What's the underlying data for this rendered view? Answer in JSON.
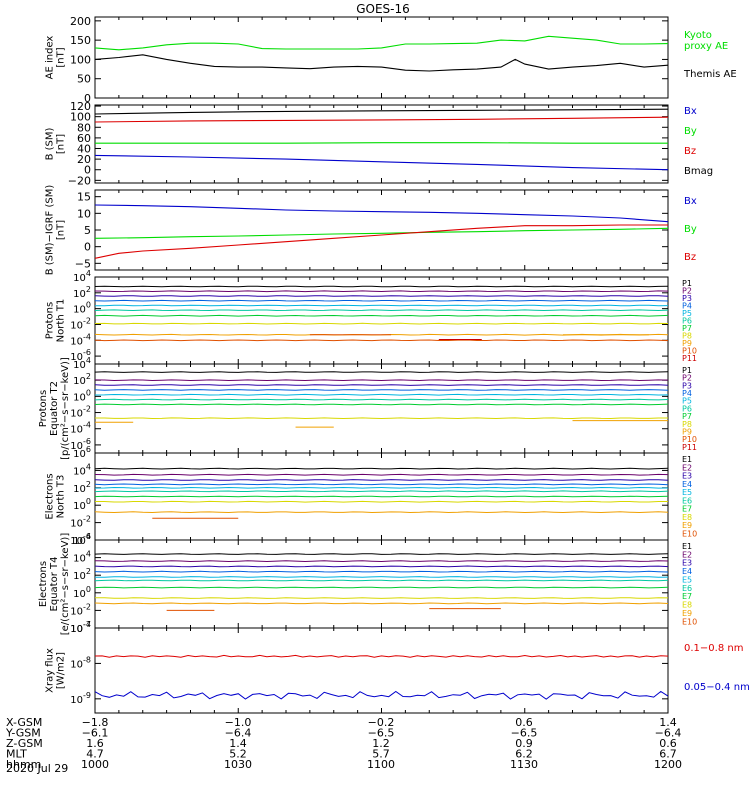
{
  "title": "GOES-16",
  "colors": {
    "black": "#000000",
    "green": "#00dd00",
    "red": "#dd0000",
    "blue": "#0000cc",
    "P": [
      "#000000",
      "#6a006a",
      "#2a00a8",
      "#0060e0",
      "#00b4e0",
      "#00c8a0",
      "#00cc30",
      "#d8d800",
      "#f0a000",
      "#e05000",
      "#cc0000"
    ],
    "E": [
      "#000000",
      "#6a006a",
      "#2a00a8",
      "#0060e0",
      "#00b4e0",
      "#00c8a0",
      "#00cc30",
      "#d8d800",
      "#f0a000",
      "#e05000",
      "#cc0000"
    ]
  },
  "chart_data": [
    {
      "type": "line",
      "id": "ae",
      "ylabel": [
        "AE index",
        "[nT]"
      ],
      "ylim": [
        0,
        210
      ],
      "yticks": [
        "0",
        "50",
        "100",
        "150",
        "200"
      ],
      "ytick_values": [
        0,
        50,
        100,
        150,
        200
      ],
      "xlim": [
        0,
        120
      ],
      "series": [
        {
          "name": "Kyoto\nproxy AE",
          "color": "green",
          "x": [
            0,
            5,
            10,
            15,
            20,
            25,
            30,
            35,
            40,
            45,
            50,
            55,
            60,
            65,
            70,
            75,
            80,
            85,
            90,
            95,
            100,
            105,
            110,
            115,
            120
          ],
          "y": [
            130,
            125,
            130,
            138,
            142,
            142,
            140,
            128,
            127,
            127,
            127,
            127,
            130,
            140,
            140,
            141,
            142,
            150,
            148,
            160,
            155,
            150,
            140,
            140,
            141
          ]
        },
        {
          "name": "Themis AE",
          "color": "black",
          "x": [
            0,
            5,
            10,
            15,
            20,
            25,
            30,
            35,
            40,
            45,
            50,
            55,
            60,
            65,
            70,
            75,
            80,
            85,
            88,
            90,
            95,
            100,
            105,
            110,
            115,
            120
          ],
          "y": [
            100,
            105,
            112,
            100,
            90,
            82,
            80,
            80,
            78,
            76,
            80,
            82,
            80,
            72,
            70,
            73,
            75,
            80,
            100,
            88,
            75,
            80,
            84,
            90,
            80,
            85
          ]
        }
      ]
    },
    {
      "type": "line",
      "id": "b",
      "ylabel": [
        "B (SM)",
        "[nT]"
      ],
      "ylim": [
        -25,
        122
      ],
      "yticks": [
        "−20",
        "0",
        "20",
        "40",
        "60",
        "80",
        "100",
        "120"
      ],
      "ytick_values": [
        -20,
        0,
        20,
        40,
        60,
        80,
        100,
        120
      ],
      "xlim": [
        0,
        120
      ],
      "series": [
        {
          "name": "Bx",
          "color": "blue",
          "x": [
            0,
            20,
            40,
            60,
            80,
            100,
            120
          ],
          "y": [
            27,
            24,
            20,
            15,
            10,
            4,
            0
          ]
        },
        {
          "name": "By",
          "color": "green",
          "x": [
            0,
            20,
            40,
            60,
            80,
            100,
            120
          ],
          "y": [
            50,
            50,
            50,
            51,
            51,
            50,
            50
          ]
        },
        {
          "name": "Bz",
          "color": "red",
          "x": [
            0,
            20,
            40,
            60,
            80,
            100,
            120
          ],
          "y": [
            90,
            92,
            93,
            94,
            95,
            97,
            99
          ]
        },
        {
          "name": "Bmag",
          "color": "black",
          "x": [
            0,
            20,
            40,
            60,
            80,
            100,
            120
          ],
          "y": [
            105,
            108,
            110,
            111,
            112,
            113,
            114
          ]
        }
      ]
    },
    {
      "type": "line",
      "id": "bdiff",
      "ylabel": [
        "B (SM)−IGRF (SM)",
        "[nT]"
      ],
      "ylim": [
        -7,
        17
      ],
      "yticks": [
        "−5",
        "0",
        "5",
        "10",
        "15"
      ],
      "ytick_values": [
        -5,
        0,
        5,
        10,
        15
      ],
      "xlim": [
        0,
        120
      ],
      "series": [
        {
          "name": "Bx",
          "color": "blue",
          "x": [
            0,
            10,
            20,
            30,
            40,
            50,
            60,
            70,
            80,
            90,
            100,
            110,
            120
          ],
          "y": [
            12.5,
            12.3,
            12,
            11.5,
            11,
            10.7,
            10.5,
            10.3,
            10,
            9.6,
            9.2,
            8.6,
            7.5
          ]
        },
        {
          "name": "By",
          "color": "green",
          "x": [
            0,
            10,
            20,
            30,
            40,
            50,
            60,
            70,
            80,
            90,
            100,
            110,
            120
          ],
          "y": [
            2.5,
            2.7,
            3,
            3.2,
            3.5,
            3.8,
            4,
            4.3,
            4.5,
            4.8,
            5,
            5.2,
            5.5
          ]
        },
        {
          "name": "Bz",
          "color": "red",
          "x": [
            0,
            5,
            10,
            20,
            30,
            40,
            50,
            60,
            70,
            80,
            90,
            100,
            110,
            120
          ],
          "y": [
            -3.5,
            -2,
            -1.3,
            -0.5,
            0.5,
            1.5,
            2.5,
            3.5,
            4.5,
            5.5,
            6.3,
            6.3,
            6.5,
            6.5
          ]
        }
      ]
    },
    {
      "type": "line",
      "id": "p1",
      "log": true,
      "ylabel": [
        "Protons",
        "North T1"
      ],
      "ylim_exp": [
        -7,
        4
      ],
      "ytick_exps": [
        4,
        2,
        0,
        -2,
        -4,
        -6
      ],
      "xlim": [
        0,
        120
      ],
      "channel_labels": [
        "P1",
        "P2",
        "P3",
        "P4",
        "P5",
        "P6",
        "P7",
        "P8",
        "P9",
        "P10",
        "P11"
      ],
      "series_levels_exp": [
        2.8,
        2.2,
        1.6,
        1.0,
        0.4,
        -0.2,
        -0.9,
        -1.9,
        -3.3,
        -4.0,
        null
      ],
      "fragments": [
        {
          "channel": 9,
          "x0": 45,
          "x1": 62,
          "exp": -3.3
        },
        {
          "channel": 10,
          "x0": 72,
          "x1": 81,
          "exp": -3.9
        },
        {
          "channel": 8,
          "x0": 98,
          "x1": 116,
          "exp": -3.3
        }
      ]
    },
    {
      "type": "line",
      "id": "p2",
      "log": true,
      "ylabel": [
        "Protons",
        "Equator T2",
        "[p/(cm²−s−sr−keV)]"
      ],
      "ylim_exp": [
        -7,
        4
      ],
      "ytick_exps": [
        4,
        2,
        0,
        -2,
        -4,
        -6
      ],
      "xlim": [
        0,
        120
      ],
      "channel_labels": [
        "P1",
        "P2",
        "P3",
        "P4",
        "P5",
        "P6",
        "P7",
        "P8",
        "P9",
        "P10",
        "P11"
      ],
      "series_levels_exp": [
        3.0,
        2.0,
        1.4,
        0.8,
        0.2,
        -0.4,
        -1.0,
        -2.7,
        null,
        null,
        null
      ],
      "fragments": [
        {
          "channel": 8,
          "x0": 0,
          "x1": 8,
          "exp": -3.2
        },
        {
          "channel": 8,
          "x0": 42,
          "x1": 50,
          "exp": -3.8
        },
        {
          "channel": 8,
          "x0": 100,
          "x1": 120,
          "exp": -3.0
        }
      ]
    },
    {
      "type": "line",
      "id": "e1",
      "log": true,
      "ylabel": [
        "Electrons",
        "North T3"
      ],
      "ylim_exp": [
        -4,
        6
      ],
      "ytick_exps": [
        6,
        4,
        2,
        0,
        -2,
        -4
      ],
      "xlim": [
        0,
        120
      ],
      "channel_labels": [
        "E1",
        "E2",
        "E3",
        "E4",
        "E5",
        "E6",
        "E7",
        "E8",
        "E9",
        "E10"
      ],
      "series_levels_exp": [
        4.2,
        3.5,
        2.9,
        2.4,
        2.0,
        1.6,
        1.0,
        0.4,
        -0.8,
        null
      ],
      "fragments": [
        {
          "channel": 9,
          "x0": 12,
          "x1": 30,
          "exp": -1.5
        }
      ]
    },
    {
      "type": "line",
      "id": "e2",
      "log": true,
      "ylabel": [
        "Electrons",
        "Equator T4",
        "[e/(cm²−s−sr−keV)]"
      ],
      "ylim_exp": [
        -4,
        6
      ],
      "ytick_exps": [
        6,
        4,
        2,
        0,
        -2,
        -4
      ],
      "xlim": [
        0,
        120
      ],
      "channel_labels": [
        "E1",
        "E2",
        "E3",
        "E4",
        "E5",
        "E6",
        "E7",
        "E8",
        "E9",
        "E10"
      ],
      "series_levels_exp": [
        4.4,
        3.6,
        3.0,
        2.4,
        1.8,
        1.4,
        0.6,
        -0.6,
        -1.2,
        null
      ],
      "fragments": [
        {
          "channel": 9,
          "x0": 15,
          "x1": 25,
          "exp": -2.0
        },
        {
          "channel": 9,
          "x0": 70,
          "x1": 85,
          "exp": -1.8
        }
      ]
    },
    {
      "type": "line",
      "id": "xray",
      "log": true,
      "ylabel": [
        "Xray flux",
        "[W/m2]"
      ],
      "ylim_exp": [
        -9.4,
        -7
      ],
      "ytick_exps": [
        -7,
        -8,
        -9
      ],
      "xlim": [
        0,
        120
      ],
      "series": [
        {
          "name": "0.1−0.8 nm",
          "color": "red",
          "exp": -7.8
        },
        {
          "name": "0.05−0.4 nm",
          "color": "blue",
          "exp": -8.9
        }
      ]
    }
  ],
  "xaxis": {
    "rows": [
      {
        "label": "X-GSM",
        "values": [
          "−1.8",
          "−1.0",
          "−0.2",
          "0.6",
          "1.4"
        ]
      },
      {
        "label": "Y-GSM",
        "values": [
          "−6.1",
          "−6.4",
          "−6.5",
          "−6.5",
          "−6.4"
        ]
      },
      {
        "label": "Z-GSM",
        "values": [
          "1.6",
          "1.4",
          "1.2",
          "0.9",
          "0.6"
        ]
      },
      {
        "label": "MLT",
        "values": [
          "4.7",
          "5.2",
          "5.7",
          "6.2",
          "6.7"
        ]
      },
      {
        "label": "hhmm",
        "values": [
          "1000",
          "1030",
          "1100",
          "1130",
          "1200"
        ]
      }
    ],
    "date": "2020 Jul 29"
  }
}
